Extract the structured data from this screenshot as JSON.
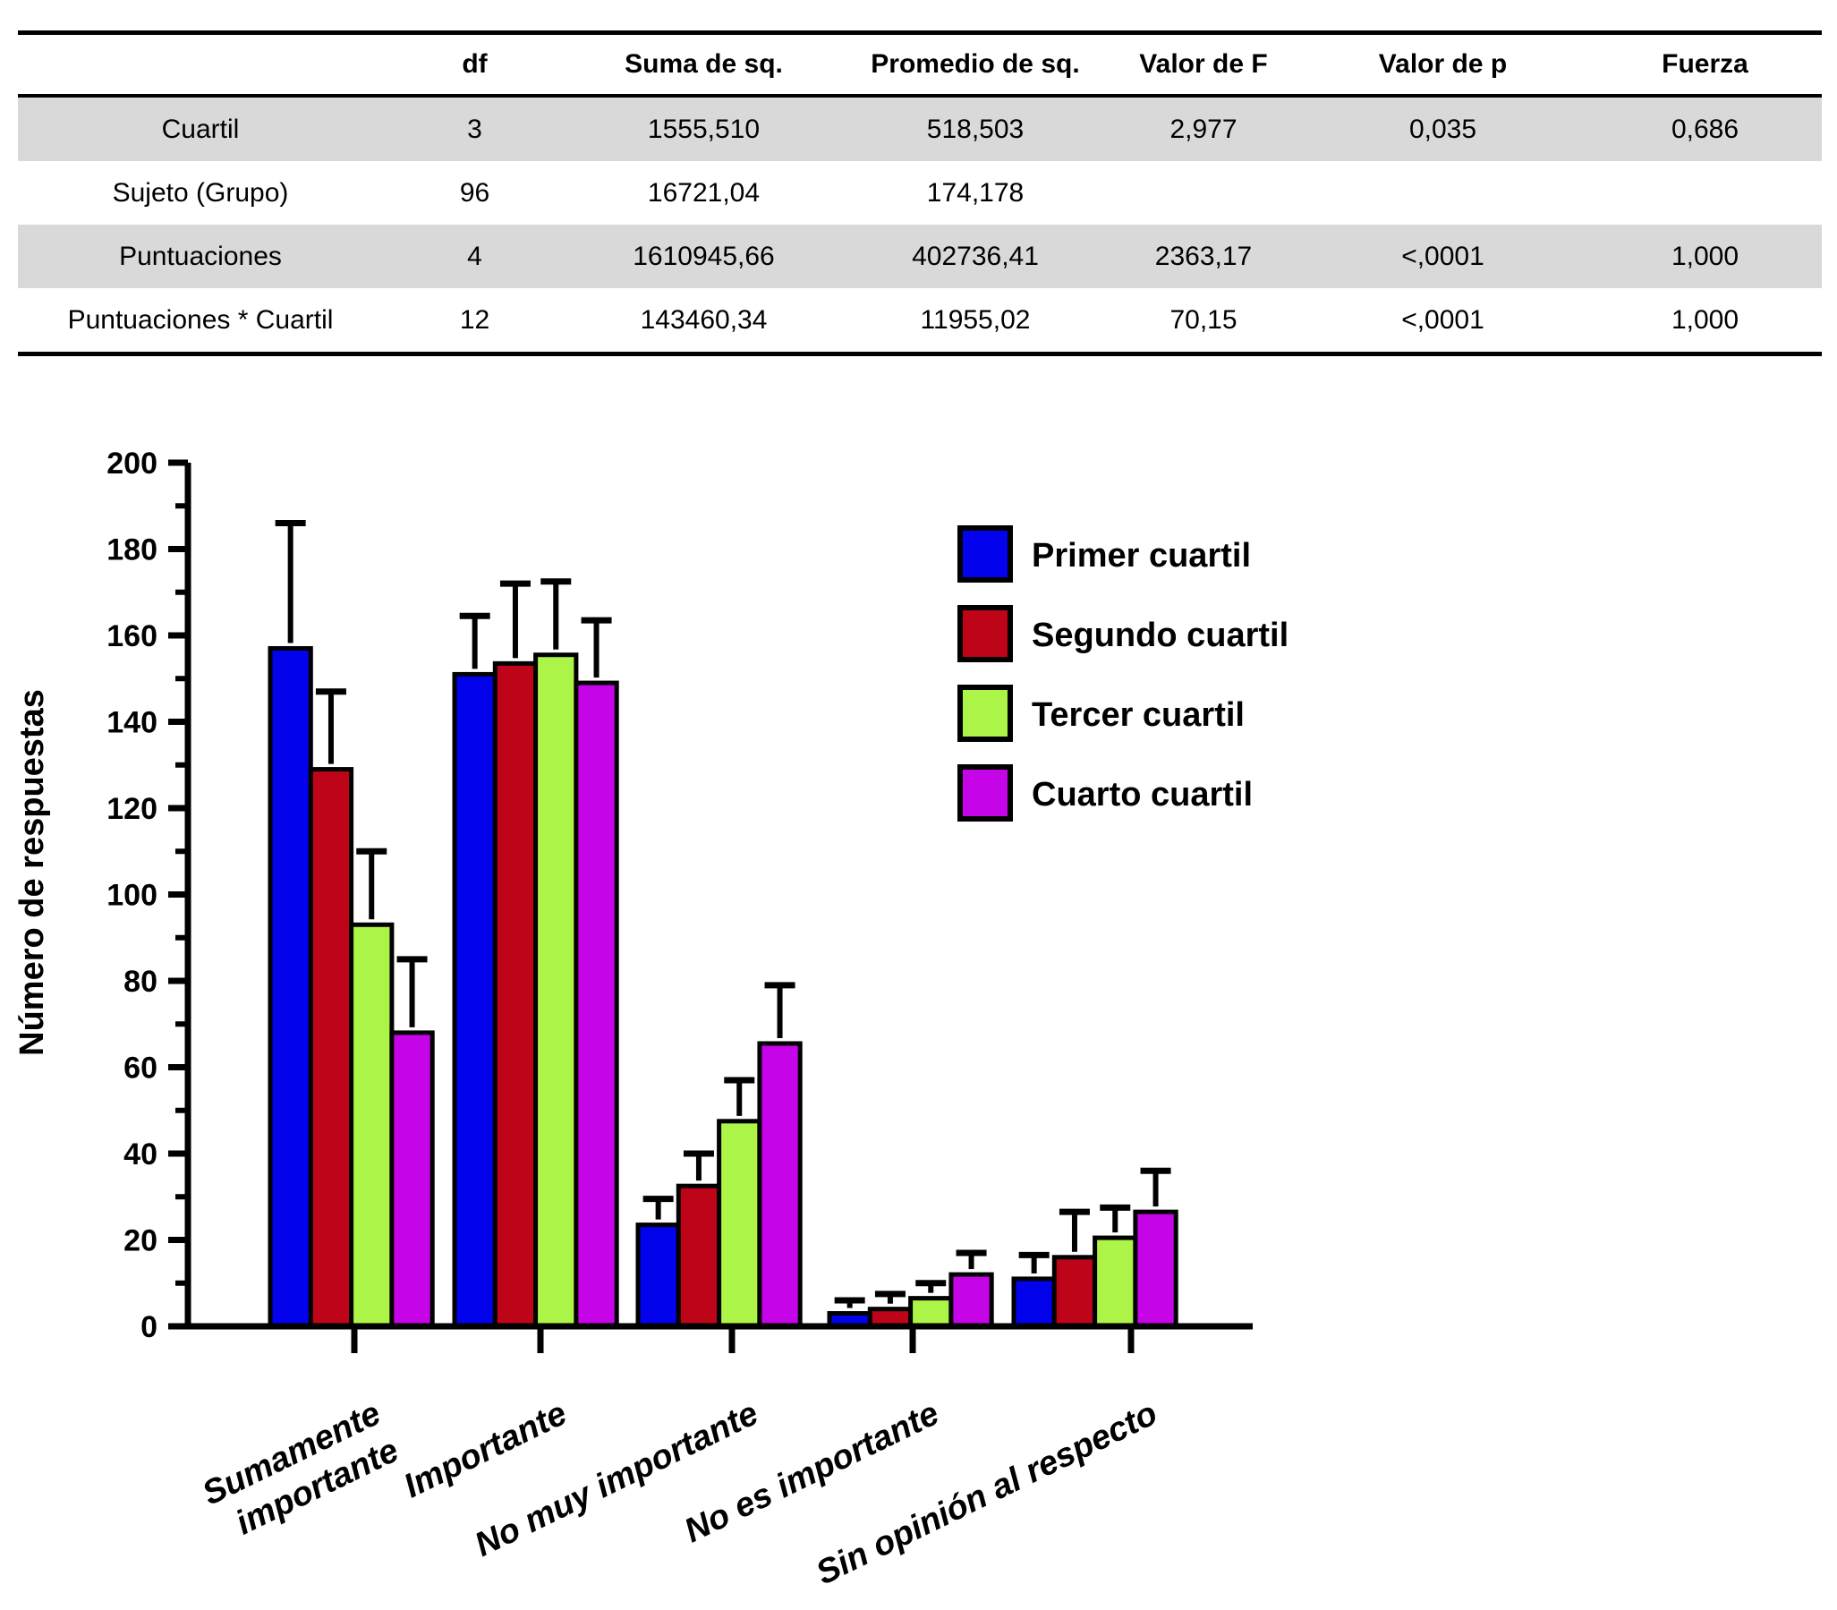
{
  "table": {
    "headers": [
      "",
      "df",
      "Suma de sq.",
      "Promedio de sq.",
      "Valor de F",
      "Valor de p",
      "Fuerza"
    ],
    "rows": [
      {
        "label": "Cuartil",
        "values": [
          "3",
          "1555,510",
          "518,503",
          "2,977",
          "0,035",
          "0,686"
        ]
      },
      {
        "label": "Sujeto (Grupo)",
        "values": [
          "96",
          "16721,04",
          "174,178",
          "",
          "",
          ""
        ]
      },
      {
        "label": "Puntuaciones",
        "values": [
          "4",
          "1610945,66",
          "402736,41",
          "2363,17",
          "<,0001",
          "1,000"
        ]
      },
      {
        "label": "Puntuaciones * Cuartil",
        "values": [
          "12",
          "143460,34",
          "11955,02",
          "70,15",
          "<,0001",
          "1,000"
        ]
      }
    ],
    "stripe_color": "#d9d9d9"
  },
  "chart_data": {
    "type": "bar",
    "title": "",
    "xlabel": "",
    "ylabel": "Número de respuestas",
    "ylim": [
      0,
      200
    ],
    "ytick_step": 20,
    "yminor_step": 10,
    "grid": false,
    "legend_position": "upper right",
    "error_bars": "upper",
    "categories": [
      "Sumamente\nimportante",
      "Importante",
      "No muy importante",
      "No es importante",
      "Sin opinión al respecto"
    ],
    "series": [
      {
        "name": "Primer cuartil",
        "color": "#0202ec",
        "values": [
          157,
          151,
          23.5,
          3,
          11
        ],
        "errors_up": [
          29,
          13.5,
          6,
          3,
          5.5
        ]
      },
      {
        "name": "Segundo cuartil",
        "color": "#be0418",
        "values": [
          129,
          153.5,
          32.5,
          4,
          16
        ],
        "errors_up": [
          18,
          18.5,
          7.5,
          3.5,
          10.5
        ]
      },
      {
        "name": "Tercer cuartil",
        "color": "#acf548",
        "values": [
          93,
          155.5,
          47.5,
          6.5,
          20.5
        ],
        "errors_up": [
          17,
          17,
          9.5,
          3.5,
          7
        ]
      },
      {
        "name": "Cuarto cuartil",
        "color": "#c505e8",
        "values": [
          68,
          149,
          65.5,
          12,
          26.5
        ],
        "errors_up": [
          17,
          14.5,
          13.5,
          5,
          9.5
        ]
      }
    ],
    "axis_color": "#000000"
  }
}
